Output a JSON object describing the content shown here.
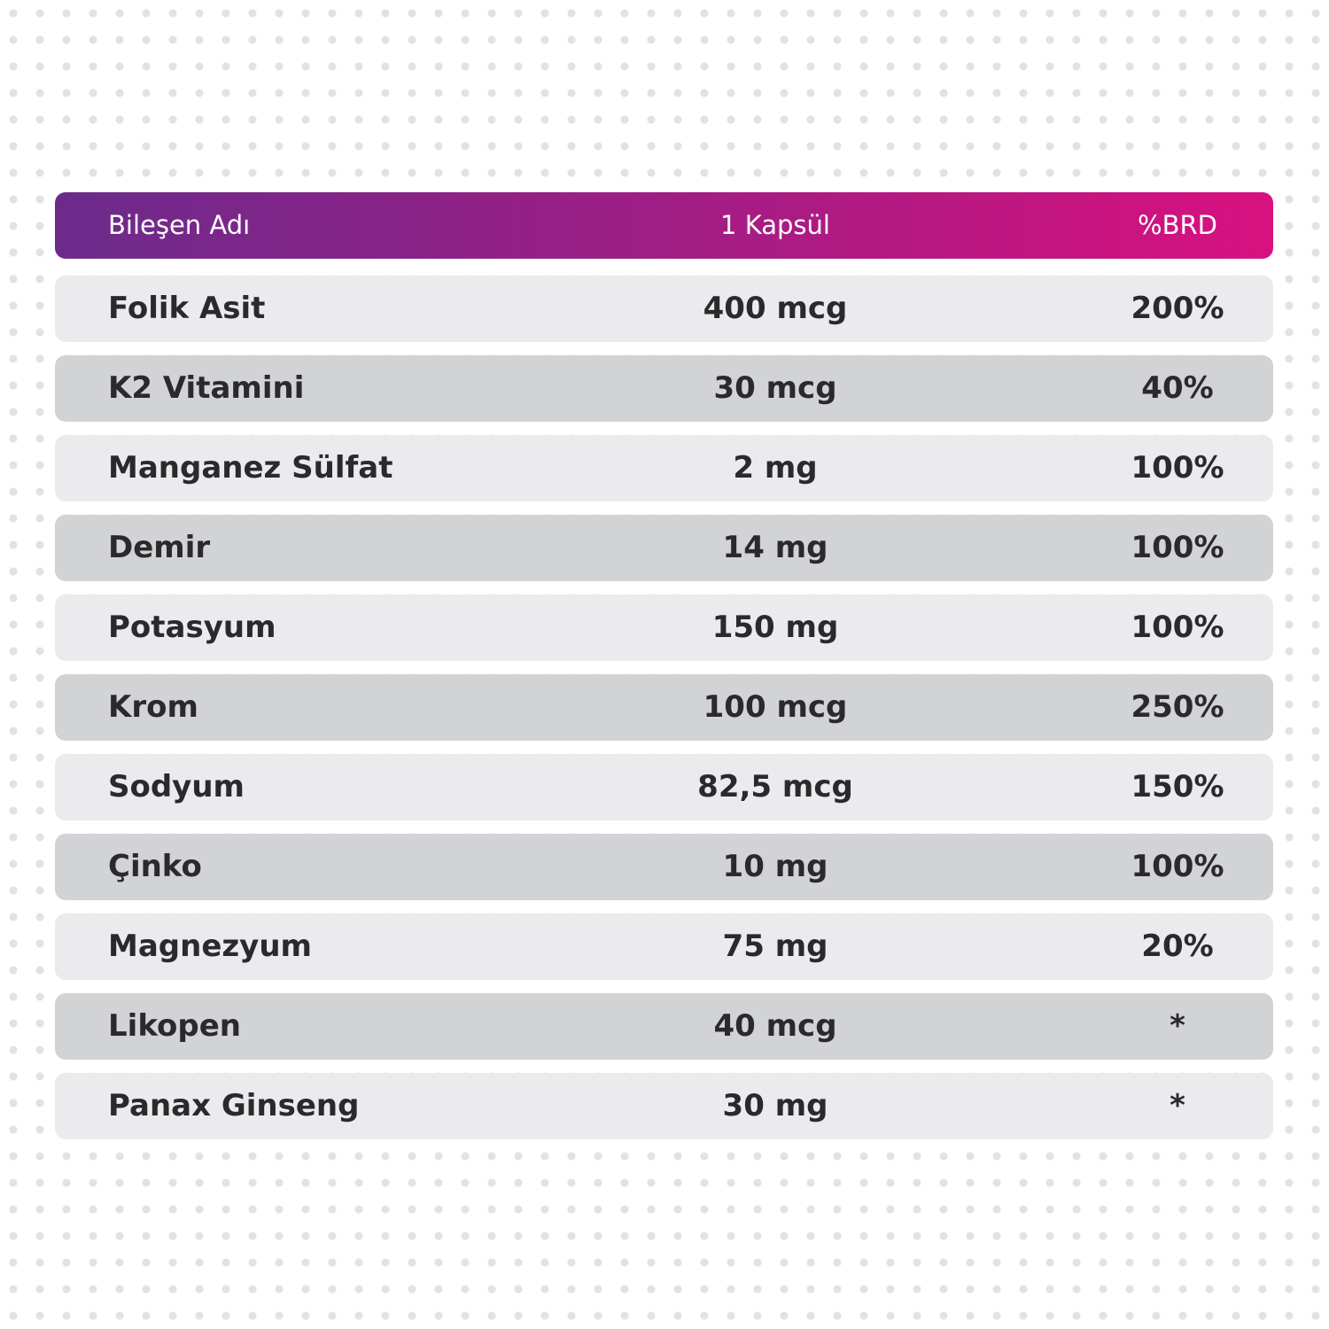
{
  "table": {
    "header": [
      "Bileşen Adı",
      "1 Kapsül",
      "%BRD"
    ],
    "rows": [
      [
        "Folik Asit",
        "400 mcg",
        "200%"
      ],
      [
        "K2 Vitamini",
        "30 mcg",
        "40%"
      ],
      [
        "Manganez Sülfat",
        "2 mg",
        "100%"
      ],
      [
        "Demir",
        "14 mg",
        "100%"
      ],
      [
        "Potasyum",
        "150 mg",
        "100%"
      ],
      [
        "Krom",
        "100 mcg",
        "250%"
      ],
      [
        "Sodyum",
        "82,5 mcg",
        "150%"
      ],
      [
        "Çinko",
        "10 mg",
        "100%"
      ],
      [
        "Magnezyum",
        "75 mg",
        "20%"
      ],
      [
        "Likopen",
        "40 mcg",
        "*"
      ],
      [
        "Panax Ginseng",
        "30 mg",
        "*"
      ]
    ]
  }
}
